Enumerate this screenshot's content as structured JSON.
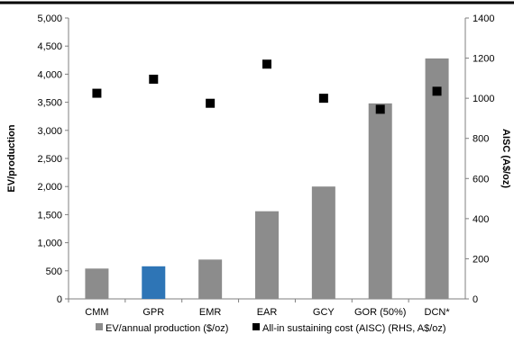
{
  "chart_data": {
    "type": "bar",
    "categories": [
      "CMM",
      "GPR",
      "EMR",
      "EAR",
      "GCY",
      "GOR (50%)",
      "DCN*"
    ],
    "series": [
      {
        "name": "EV/annual production ($/oz)",
        "type": "bar",
        "axis": "left",
        "values": [
          540,
          580,
          700,
          1560,
          2000,
          3480,
          4280
        ],
        "colors": [
          "#8c8c8c",
          "#2e75b6",
          "#8c8c8c",
          "#8c8c8c",
          "#8c8c8c",
          "#8c8c8c",
          "#8c8c8c"
        ]
      },
      {
        "name": "All-in sustaining cost (AISC) (RHS, A$/oz)",
        "type": "scatter",
        "marker": "square",
        "axis": "right",
        "values": [
          1025,
          1095,
          975,
          1170,
          1000,
          945,
          1035
        ],
        "color": "#000000"
      }
    ],
    "ylabel": "EV/production",
    "y2label": "AISC (A$/oz)",
    "ylim": [
      0,
      5000
    ],
    "y2lim": [
      0,
      1400
    ],
    "yticks": [
      "0",
      "500",
      "1,000",
      "1,500",
      "2,000",
      "2,500",
      "3,000",
      "3,500",
      "4,000",
      "4,500",
      "5,000"
    ],
    "y2ticks": [
      "0",
      "200",
      "400",
      "600",
      "800",
      "1000",
      "1200",
      "1400"
    ],
    "grid": false,
    "legend_position": "bottom"
  }
}
